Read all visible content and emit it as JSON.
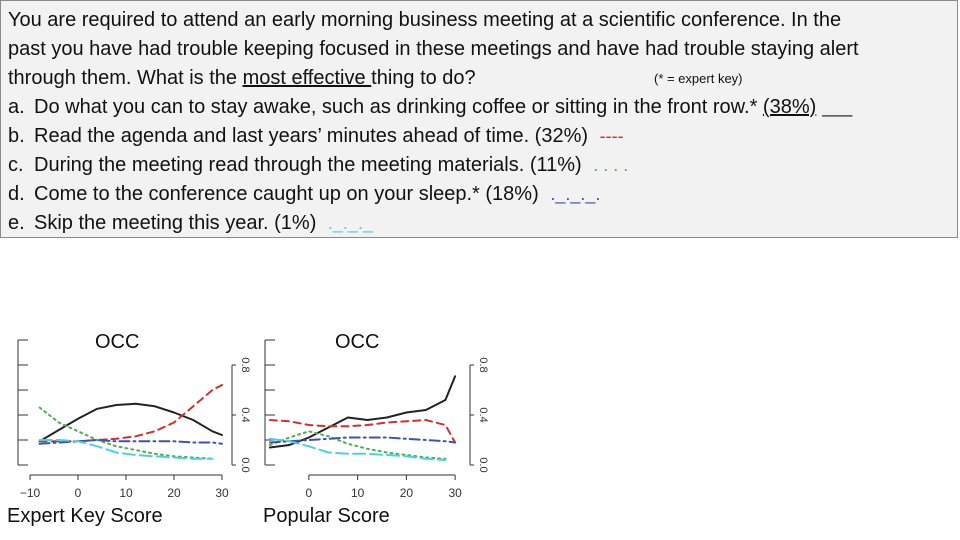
{
  "question": {
    "line1": "You are required to attend an early morning business meeting at a scientific conference. In the",
    "line2": "past you have had trouble keeping focused in these meetings and have had trouble staying alert",
    "line3_prefix": "through them. What is the ",
    "line3_emph": "most effective ",
    "line3_suffix": "thing to do?",
    "key_note": "(* = expert key)"
  },
  "options": [
    {
      "letter": "a.",
      "text": "Do what you can to stay awake, such as drinking coffee or sitting in the front row.* ",
      "pct": "(38%)",
      "mark": "___",
      "color": "#222222"
    },
    {
      "letter": "b.",
      "text": "Read the agenda and last years’ minutes ahead of time. (32%) ",
      "mark": "----",
      "color": "#d32f2f"
    },
    {
      "letter": "c.",
      "text": "During the meeting read through the meeting materials. (11%) ",
      "mark": ". . . .",
      "color": "#4caf50"
    },
    {
      "letter": "d.",
      "text": "Come to the conference caught up on your sleep.* (18%) ",
      "mark": "._._._.",
      "color": "#3f51b5"
    },
    {
      "letter": "e.",
      "text": "Skip the meeting this year. (1%) ",
      "mark": "._._._",
      "color": "#4dd0e1"
    }
  ],
  "chart_data": [
    {
      "type": "line",
      "title": "OCC",
      "caption": "Expert Key Score",
      "x_ticks": [
        "−10",
        "0",
        "10",
        "20",
        "30"
      ],
      "y_ticks": [
        "0.0",
        "0.4",
        "0.8"
      ],
      "xlim": [
        -10,
        30
      ],
      "ylim": [
        0,
        1
      ],
      "series": [
        {
          "key": "a",
          "color": "#222222",
          "dash": "none",
          "x": [
            -8,
            -4,
            0,
            4,
            8,
            12,
            16,
            20,
            24,
            28,
            30
          ],
          "y": [
            0.19,
            0.28,
            0.37,
            0.45,
            0.48,
            0.49,
            0.47,
            0.42,
            0.36,
            0.27,
            0.24
          ]
        },
        {
          "key": "b",
          "color": "#d32f2f",
          "dash": "7,5",
          "x": [
            -8,
            -4,
            0,
            4,
            8,
            12,
            16,
            20,
            24,
            28,
            30
          ],
          "y": [
            0.19,
            0.19,
            0.19,
            0.2,
            0.21,
            0.23,
            0.27,
            0.34,
            0.47,
            0.6,
            0.64
          ]
        },
        {
          "key": "c",
          "color": "#4caf50",
          "dash": "2,4",
          "x": [
            -8,
            -4,
            0,
            4,
            8,
            12,
            16,
            20,
            24,
            28
          ],
          "y": [
            0.46,
            0.34,
            0.27,
            0.2,
            0.15,
            0.12,
            0.09,
            0.07,
            0.06,
            0.05
          ]
        },
        {
          "key": "d",
          "color": "#3f51b5",
          "dash": "10,4,2,4",
          "x": [
            -8,
            -4,
            0,
            4,
            8,
            12,
            16,
            20,
            24,
            28,
            30
          ],
          "y": [
            0.17,
            0.18,
            0.19,
            0.2,
            0.19,
            0.19,
            0.19,
            0.19,
            0.18,
            0.18,
            0.17
          ]
        },
        {
          "key": "e",
          "color": "#4dd0e1",
          "dash": "12,5",
          "x": [
            -8,
            -4,
            0,
            4,
            8,
            12,
            16,
            20,
            24,
            28
          ],
          "y": [
            0.2,
            0.2,
            0.19,
            0.15,
            0.1,
            0.08,
            0.07,
            0.06,
            0.05,
            0.05
          ]
        }
      ]
    },
    {
      "type": "line",
      "title": "OCC",
      "caption": "Popular Score",
      "x_ticks": [
        "0",
        "10",
        "20",
        "30"
      ],
      "y_ticks": [
        "0.0",
        "0.4",
        "0.8"
      ],
      "xlim": [
        -9,
        31
      ],
      "ylim": [
        0,
        1
      ],
      "series": [
        {
          "key": "a",
          "color": "#222222",
          "dash": "none",
          "x": [
            -8,
            -4,
            0,
            4,
            8,
            12,
            16,
            20,
            24,
            28,
            30
          ],
          "y": [
            0.14,
            0.16,
            0.22,
            0.3,
            0.38,
            0.36,
            0.38,
            0.42,
            0.44,
            0.52,
            0.71
          ]
        },
        {
          "key": "b",
          "color": "#d32f2f",
          "dash": "7,5",
          "x": [
            -8,
            -4,
            0,
            4,
            8,
            12,
            16,
            20,
            24,
            28,
            30
          ],
          "y": [
            0.36,
            0.35,
            0.32,
            0.31,
            0.31,
            0.32,
            0.34,
            0.35,
            0.36,
            0.32,
            0.18
          ]
        },
        {
          "key": "c",
          "color": "#4caf50",
          "dash": "2,4",
          "x": [
            -8,
            -4,
            0,
            4,
            8,
            12,
            16,
            20,
            24,
            28
          ],
          "y": [
            0.16,
            0.22,
            0.27,
            0.23,
            0.17,
            0.13,
            0.1,
            0.08,
            0.06,
            0.05
          ]
        },
        {
          "key": "d",
          "color": "#3f51b5",
          "dash": "10,4,2,4",
          "x": [
            -8,
            -4,
            0,
            4,
            8,
            12,
            16,
            20,
            24,
            28,
            30
          ],
          "y": [
            0.18,
            0.19,
            0.2,
            0.21,
            0.22,
            0.22,
            0.22,
            0.21,
            0.2,
            0.19,
            0.18
          ]
        },
        {
          "key": "e",
          "color": "#4dd0e1",
          "dash": "12,5",
          "x": [
            -8,
            -4,
            0,
            4,
            8,
            12,
            16,
            20,
            24,
            28
          ],
          "y": [
            0.21,
            0.19,
            0.15,
            0.1,
            0.09,
            0.09,
            0.08,
            0.07,
            0.05,
            0.04
          ]
        }
      ]
    }
  ]
}
